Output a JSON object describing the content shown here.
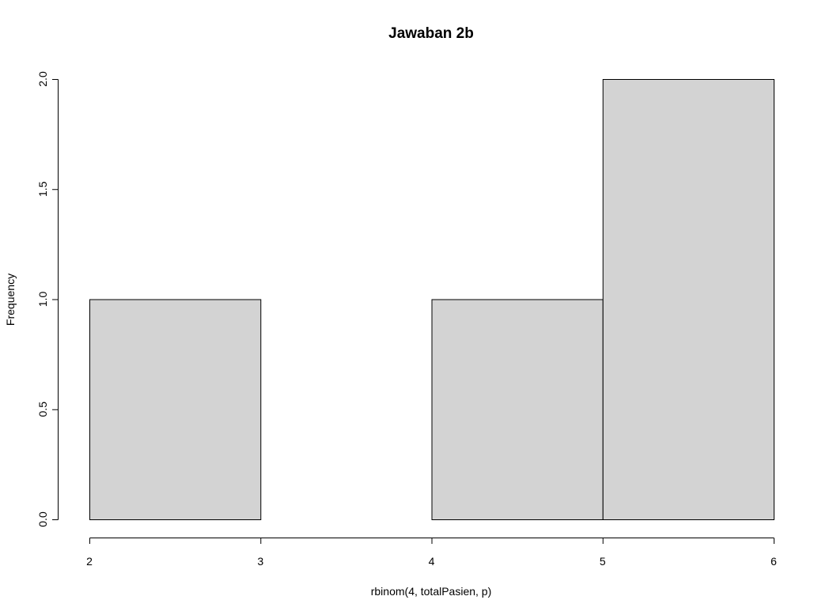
{
  "chart_data": {
    "type": "histogram",
    "title": "Jawaban 2b",
    "xlabel": "rbinom(4, totalPasien, p)",
    "ylabel": "Frequency",
    "bins": [
      {
        "start": 2,
        "end": 3,
        "count": 1
      },
      {
        "start": 3,
        "end": 4,
        "count": 0
      },
      {
        "start": 4,
        "end": 5,
        "count": 1
      },
      {
        "start": 5,
        "end": 6,
        "count": 2
      }
    ],
    "xticks": [
      "2",
      "3",
      "4",
      "5",
      "6"
    ],
    "yticks": [
      "0.0",
      "0.5",
      "1.0",
      "1.5",
      "2.0"
    ],
    "xlim": [
      2,
      6
    ],
    "ylim": [
      0,
      2
    ],
    "bar_color": "#d3d3d3",
    "grid": false,
    "legend": "none"
  }
}
